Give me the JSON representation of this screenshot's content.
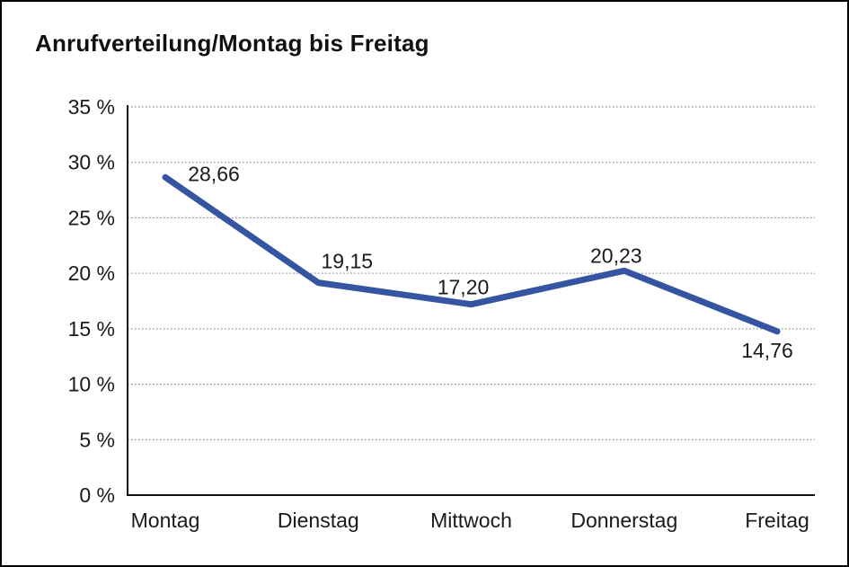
{
  "chart_data": {
    "type": "line",
    "title": "Anrufverteilung/Montag bis Freitag",
    "categories": [
      "Montag",
      "Dienstag",
      "Mittwoch",
      "Donnerstag",
      "Freitag"
    ],
    "values": [
      28.66,
      19.15,
      17.2,
      20.23,
      14.76
    ],
    "value_labels": [
      "28,66",
      "19,15",
      "17,20",
      "20,23",
      "14,76"
    ],
    "series": [
      {
        "name": "Anrufverteilung",
        "values": [
          28.66,
          19.15,
          17.2,
          20.23,
          14.76
        ]
      }
    ],
    "xlabel": "",
    "ylabel": "",
    "ylim": [
      0,
      35
    ],
    "y_tick_step": 5,
    "y_tick_labels": [
      "0 %",
      "5 %",
      "10 %",
      "15 %",
      "20 %",
      "25 %",
      "30 %",
      "35 %"
    ],
    "grid": "horizontal-dotted",
    "legend_position": "none",
    "colors": {
      "series_line": "#3555a2",
      "axis": "#111111",
      "gridline": "#6e6e6e",
      "text": "#1a1a1a",
      "background": "#ffffff",
      "frame_border": "#000000"
    },
    "line_width": 7
  }
}
